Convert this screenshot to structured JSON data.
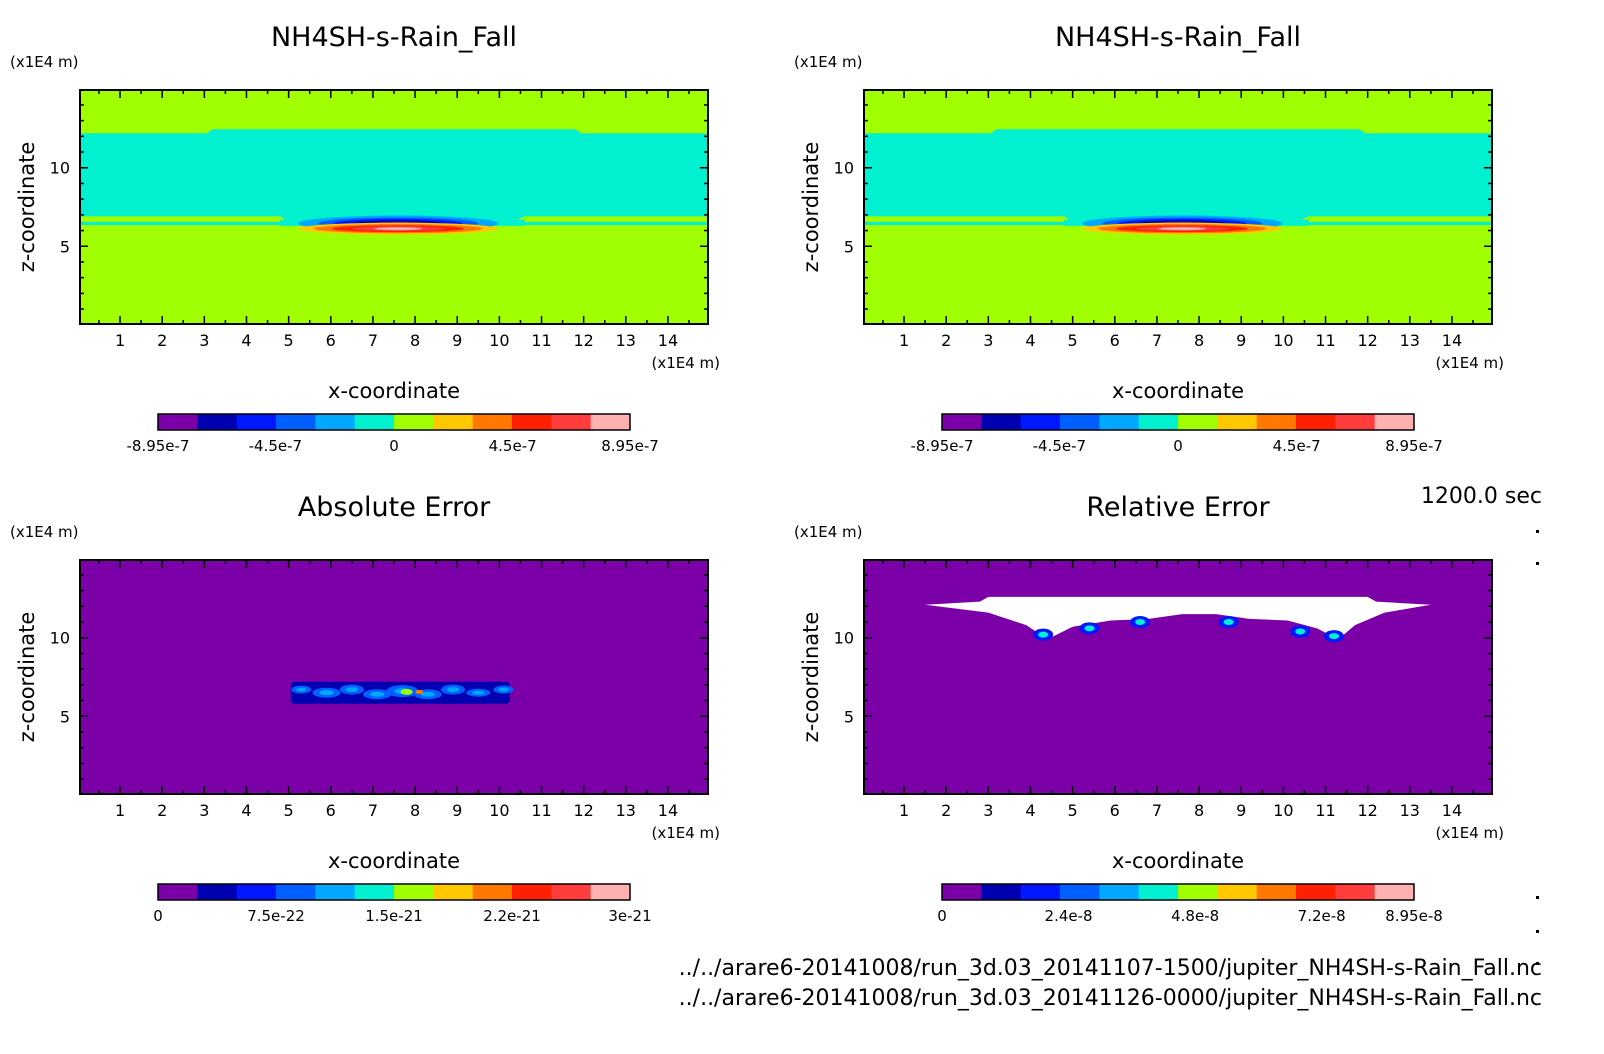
{
  "footer": {
    "time_label": "1200.0 sec",
    "file1": "../../arare6-20141008/run_3d.03_20141107-1500/jupiter_NH4SH-s-Rain_Fall.nc",
    "file2": "../../arare6-20141008/run_3d.03_20141126-0000/jupiter_NH4SH-s-Rain_Fall.nc"
  },
  "chart_data": [
    {
      "type": "heatmap",
      "title": "NH4SH-s-Rain_Fall",
      "xlabel": "x-coordinate",
      "ylabel": "z-coordinate",
      "x_unit": "(x1E4 m)",
      "y_unit": "(x1E4 m)",
      "x_ticks": [
        1,
        2,
        3,
        4,
        5,
        6,
        7,
        8,
        9,
        10,
        11,
        12,
        13,
        14
      ],
      "y_ticks": [
        5,
        10
      ],
      "xlim": [
        0.05,
        14.95
      ],
      "ylim": [
        0.05,
        14.95
      ],
      "colorbar": {
        "range": [
          -8.95e-07,
          8.95e-07
        ],
        "tick_labels": [
          "-8.95e-7",
          "-4.5e-7",
          "0",
          "4.5e-7",
          "8.95e-7"
        ],
        "tick_values": [
          -8.95e-07,
          -4.5e-07,
          0,
          4.5e-07,
          8.95e-07
        ],
        "colors": [
          "#7b00a8",
          "#0000b0",
          "#0018ff",
          "#0060ff",
          "#00a8ff",
          "#00f0d0",
          "#a0ff00",
          "#ffc800",
          "#ff7800",
          "#ff2000",
          "#ff3c3c",
          "#ffb0b0"
        ]
      },
      "background_level": 0.0
    },
    {
      "type": "heatmap",
      "title": "NH4SH-s-Rain_Fall",
      "xlabel": "x-coordinate",
      "ylabel": "z-coordinate",
      "x_unit": "(x1E4 m)",
      "y_unit": "(x1E4 m)",
      "x_ticks": [
        1,
        2,
        3,
        4,
        5,
        6,
        7,
        8,
        9,
        10,
        11,
        12,
        13,
        14
      ],
      "y_ticks": [
        5,
        10
      ],
      "xlim": [
        0.05,
        14.95
      ],
      "ylim": [
        0.05,
        14.95
      ],
      "colorbar": {
        "range": [
          -8.95e-07,
          8.95e-07
        ],
        "tick_labels": [
          "-8.95e-7",
          "-4.5e-7",
          "0",
          "4.5e-7",
          "8.95e-7"
        ],
        "tick_values": [
          -8.95e-07,
          -4.5e-07,
          0,
          4.5e-07,
          8.95e-07
        ],
        "colors": [
          "#7b00a8",
          "#0000b0",
          "#0018ff",
          "#0060ff",
          "#00a8ff",
          "#00f0d0",
          "#a0ff00",
          "#ffc800",
          "#ff7800",
          "#ff2000",
          "#ff3c3c",
          "#ffb0b0"
        ]
      },
      "background_level": 0.0
    },
    {
      "type": "heatmap",
      "title": "Absolute Error",
      "xlabel": "x-coordinate",
      "ylabel": "z-coordinate",
      "x_unit": "(x1E4 m)",
      "y_unit": "(x1E4 m)",
      "x_ticks": [
        1,
        2,
        3,
        4,
        5,
        6,
        7,
        8,
        9,
        10,
        11,
        12,
        13,
        14
      ],
      "y_ticks": [
        5,
        10
      ],
      "xlim": [
        0.05,
        14.95
      ],
      "ylim": [
        0.05,
        14.95
      ],
      "colorbar": {
        "range": [
          0,
          3e-21
        ],
        "tick_labels": [
          "0",
          "7.5e-22",
          "1.5e-21",
          "2.2e-21",
          "3e-21"
        ],
        "tick_values": [
          0,
          7.5e-22,
          1.5e-21,
          2.25e-21,
          3e-21
        ],
        "colors": [
          "#7b00a8",
          "#0000b0",
          "#0018ff",
          "#0060ff",
          "#00a8ff",
          "#00f0d0",
          "#a0ff00",
          "#ffc800",
          "#ff7800",
          "#ff2000",
          "#ff3c3c",
          "#ffb0b0"
        ]
      },
      "background_level": 0.0
    },
    {
      "type": "heatmap",
      "title": "Relative Error",
      "xlabel": "x-coordinate",
      "ylabel": "z-coordinate",
      "x_unit": "(x1E4 m)",
      "y_unit": "(x1E4 m)",
      "x_ticks": [
        1,
        2,
        3,
        4,
        5,
        6,
        7,
        8,
        9,
        10,
        11,
        12,
        13,
        14
      ],
      "y_ticks": [
        5,
        10
      ],
      "xlim": [
        0.05,
        14.95
      ],
      "ylim": [
        0.05,
        14.95
      ],
      "colorbar": {
        "range": [
          0,
          8.95e-08
        ],
        "tick_labels": [
          "0",
          "2.4e-8",
          "4.8e-8",
          "7.2e-8",
          "8.95e-8"
        ],
        "tick_values": [
          0,
          2.4e-08,
          4.8e-08,
          7.2e-08,
          8.95e-08
        ],
        "colors": [
          "#7b00a8",
          "#0000b0",
          "#0018ff",
          "#0060ff",
          "#00a8ff",
          "#00f0d0",
          "#a0ff00",
          "#ffc800",
          "#ff7800",
          "#ff2000",
          "#ff3c3c",
          "#ffb0b0"
        ]
      },
      "background_level": 0.0
    }
  ]
}
